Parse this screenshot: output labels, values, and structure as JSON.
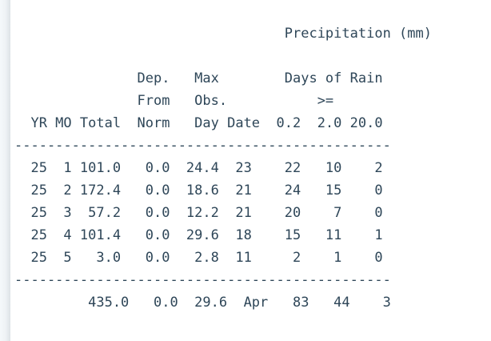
{
  "page": {
    "background_color": "#ffffff",
    "left_edge_color": "#e7ecef",
    "text_color": "#2e4658"
  },
  "report": {
    "title": "Precipitation (mm)",
    "units": "mm",
    "lines": [
      "                                 Precipitation (mm)",
      "",
      "               Dep.   Max        Days of Rain",
      "               From   Obs.           >=",
      "  YR MO Total  Norm   Day Date  0.2  2.0 20.0",
      "----------------------------------------------",
      "  25  1 101.0   0.0  24.4  23    22   10    2",
      "  25  2 172.4   0.0  18.6  21    24   15    0",
      "  25  3  57.2   0.0  12.2  21    20    7    0",
      "  25  4 101.4   0.0  29.6  18    15   11    1",
      "  25  5   3.0   0.0   2.8  11     2    1    0",
      "----------------------------------------------",
      "         435.0   0.0  29.6  Apr   83   44    3"
    ],
    "table": {
      "header_groups": [
        "Dep. From Norm",
        "Max Obs. Day Date",
        "Days of Rain >="
      ],
      "columns": [
        "YR",
        "MO",
        "Total",
        "Norm",
        "Day",
        "Date",
        "0.2",
        "2.0",
        "20.0"
      ],
      "rows": [
        {
          "yr": 25,
          "mo": 1,
          "total": 101.0,
          "dep_from_norm": 0.0,
          "max_obs_day": 24.4,
          "date": 23,
          "days_ge_0_2": 22,
          "days_ge_2_0": 10,
          "days_ge_20_0": 2
        },
        {
          "yr": 25,
          "mo": 2,
          "total": 172.4,
          "dep_from_norm": 0.0,
          "max_obs_day": 18.6,
          "date": 21,
          "days_ge_0_2": 24,
          "days_ge_2_0": 15,
          "days_ge_20_0": 0
        },
        {
          "yr": 25,
          "mo": 3,
          "total": 57.2,
          "dep_from_norm": 0.0,
          "max_obs_day": 12.2,
          "date": 21,
          "days_ge_0_2": 20,
          "days_ge_2_0": 7,
          "days_ge_20_0": 0
        },
        {
          "yr": 25,
          "mo": 4,
          "total": 101.4,
          "dep_from_norm": 0.0,
          "max_obs_day": 29.6,
          "date": 18,
          "days_ge_0_2": 15,
          "days_ge_2_0": 11,
          "days_ge_20_0": 1
        },
        {
          "yr": 25,
          "mo": 5,
          "total": 3.0,
          "dep_from_norm": 0.0,
          "max_obs_day": 2.8,
          "date": 11,
          "days_ge_0_2": 2,
          "days_ge_2_0": 1,
          "days_ge_20_0": 0
        }
      ],
      "totals": {
        "total": 435.0,
        "dep_from_norm": 0.0,
        "max_obs_day": 29.6,
        "max_obs_month": "Apr",
        "days_ge_0_2": 83,
        "days_ge_2_0": 44,
        "days_ge_20_0": 3
      }
    }
  }
}
